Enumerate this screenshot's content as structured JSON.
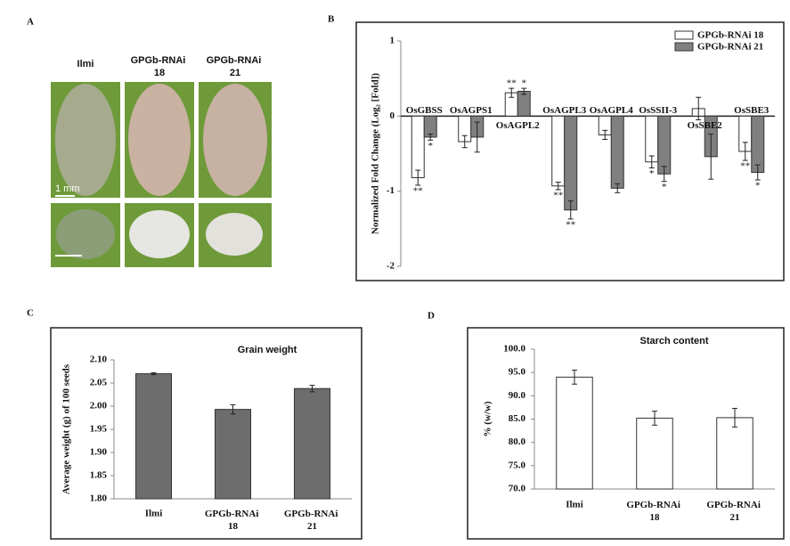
{
  "panel_labels": [
    "A",
    "B",
    "C",
    "D"
  ],
  "photo_panel": {
    "labels": [
      "Ilmi",
      "GPGb-RNAi 18",
      "GPGb-RNAi 21"
    ],
    "scale_bar_label": "1 mm"
  },
  "chart_data": [
    {
      "type": "bar",
      "ylabel": "Normalized Fold Change (Log₂ [Fold])",
      "categories": [
        "OsGBSS",
        "OsAGPS1",
        "OsAGPL2",
        "OsAGPL3",
        "OsAGPL4",
        "OsSSII-3",
        "OsSBE2",
        "OsSBE3"
      ],
      "series": [
        {
          "name": "GPGb-RNAi 18",
          "color": "#ffffff",
          "values": [
            -0.82,
            -0.34,
            0.31,
            -0.93,
            -0.25,
            -0.61,
            0.1,
            -0.47
          ],
          "errors": [
            0.1,
            0.08,
            0.06,
            0.05,
            0.06,
            0.08,
            0.15,
            0.12
          ],
          "annotations": [
            "**",
            null,
            "**",
            "**",
            null,
            "*",
            null,
            "**"
          ]
        },
        {
          "name": "GPGb-RNAi 21",
          "color": "#808080",
          "values": [
            -0.28,
            -0.28,
            0.33,
            -1.25,
            -0.96,
            -0.77,
            -0.54,
            -0.75
          ],
          "errors": [
            0.04,
            0.2,
            0.04,
            0.12,
            0.06,
            0.1,
            0.3,
            0.1
          ],
          "annotations": [
            "*",
            null,
            "*",
            "**",
            null,
            "*",
            null,
            "*"
          ]
        }
      ],
      "ylim": [
        -2,
        1
      ],
      "yticks": [
        -2,
        -1,
        0,
        1
      ],
      "legend": "top-right"
    },
    {
      "type": "bar",
      "title": "Grain weight",
      "ylabel": "Average weight (g) of 100 seeds",
      "categories": [
        "Ilmi",
        "GPGb-RNAi 18",
        "GPGb-RNAi 21"
      ],
      "values": [
        2.07,
        1.993,
        2.038
      ],
      "errors": [
        0.002,
        0.01,
        0.007
      ],
      "color": "#6d6d6d",
      "ylim": [
        1.8,
        2.1
      ],
      "yticks": [
        {
          "value": 1.8,
          "label": "1.80"
        },
        {
          "value": 1.85,
          "label": "1.85"
        },
        {
          "value": 1.9,
          "label": "1.90"
        },
        {
          "value": 1.95,
          "label": "1.95"
        },
        {
          "value": 2.0,
          "label": "2.00"
        },
        {
          "value": 2.05,
          "label": "2.05"
        },
        {
          "value": 2.1,
          "label": "2.10"
        }
      ]
    },
    {
      "type": "bar",
      "title": "Starch content",
      "ylabel": "% (w/w)",
      "categories": [
        "Ilmi",
        "GPGb-RNAi 18",
        "GPGb-RNAi 21"
      ],
      "values": [
        94.0,
        85.2,
        85.3
      ],
      "errors": [
        1.5,
        1.5,
        2.0
      ],
      "color": "#ffffff",
      "ylim": [
        70,
        100
      ],
      "yticks": [
        {
          "value": 70,
          "label": "70.0"
        },
        {
          "value": 75,
          "label": "75.0"
        },
        {
          "value": 80,
          "label": "80.0"
        },
        {
          "value": 85,
          "label": "85.0"
        },
        {
          "value": 90,
          "label": "90.0"
        },
        {
          "value": 95,
          "label": "95.0"
        },
        {
          "value": 100,
          "label": "100.0"
        }
      ]
    }
  ]
}
